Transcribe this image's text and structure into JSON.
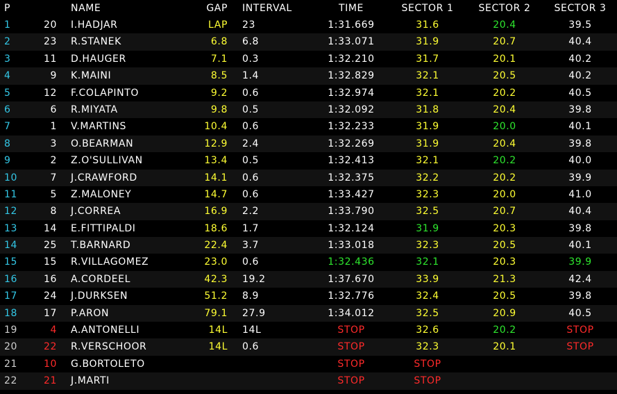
{
  "colors": {
    "white": "#ffffff",
    "yellow": "#ffff33",
    "green": "#2ee62e",
    "cyan": "#33c7e6",
    "red": "#ff2a2a",
    "background": "#000000",
    "row_alt": "#121212"
  },
  "headers": {
    "pos": "P",
    "name": "NAME",
    "gap": "GAP",
    "interval": "INTERVAL",
    "time": "TIME",
    "s1": "SECTOR 1",
    "s2": "SECTOR 2",
    "s3": "SECTOR 3"
  },
  "rows": [
    {
      "pos": "1",
      "num": "20",
      "name": "I.HADJAR",
      "gap": "LAP",
      "interval": "23",
      "time": "1:31.669",
      "s1": "31.6",
      "s2": "20.4",
      "s3": "39.5",
      "c": {
        "pos": "cyan",
        "num": "white",
        "name": "white",
        "gap": "yellow",
        "interval": "white",
        "time": "white",
        "s1": "yellow",
        "s2": "green",
        "s3": "white"
      }
    },
    {
      "pos": "2",
      "num": "23",
      "name": "R.STANEK",
      "gap": "6.8",
      "interval": "6.8",
      "time": "1:33.071",
      "s1": "31.9",
      "s2": "20.7",
      "s3": "40.4",
      "c": {
        "pos": "cyan",
        "num": "white",
        "name": "white",
        "gap": "yellow",
        "interval": "white",
        "time": "white",
        "s1": "yellow",
        "s2": "yellow",
        "s3": "white"
      }
    },
    {
      "pos": "3",
      "num": "11",
      "name": "D.HAUGER",
      "gap": "7.1",
      "interval": "0.3",
      "time": "1:32.210",
      "s1": "31.7",
      "s2": "20.1",
      "s3": "40.2",
      "c": {
        "pos": "cyan",
        "num": "white",
        "name": "white",
        "gap": "yellow",
        "interval": "white",
        "time": "white",
        "s1": "yellow",
        "s2": "yellow",
        "s3": "white"
      }
    },
    {
      "pos": "4",
      "num": "9",
      "name": "K.MAINI",
      "gap": "8.5",
      "interval": "1.4",
      "time": "1:32.829",
      "s1": "32.1",
      "s2": "20.5",
      "s3": "40.2",
      "c": {
        "pos": "cyan",
        "num": "white",
        "name": "white",
        "gap": "yellow",
        "interval": "white",
        "time": "white",
        "s1": "yellow",
        "s2": "yellow",
        "s3": "white"
      }
    },
    {
      "pos": "5",
      "num": "12",
      "name": "F.COLAPINTO",
      "gap": "9.2",
      "interval": "0.6",
      "time": "1:32.974",
      "s1": "32.1",
      "s2": "20.2",
      "s3": "40.5",
      "c": {
        "pos": "cyan",
        "num": "white",
        "name": "white",
        "gap": "yellow",
        "interval": "white",
        "time": "white",
        "s1": "yellow",
        "s2": "yellow",
        "s3": "white"
      }
    },
    {
      "pos": "6",
      "num": "6",
      "name": "R.MIYATA",
      "gap": "9.8",
      "interval": "0.5",
      "time": "1:32.092",
      "s1": "31.8",
      "s2": "20.4",
      "s3": "39.8",
      "c": {
        "pos": "cyan",
        "num": "white",
        "name": "white",
        "gap": "yellow",
        "interval": "white",
        "time": "white",
        "s1": "yellow",
        "s2": "yellow",
        "s3": "white"
      }
    },
    {
      "pos": "7",
      "num": "1",
      "name": "V.MARTINS",
      "gap": "10.4",
      "interval": "0.6",
      "time": "1:32.233",
      "s1": "31.9",
      "s2": "20.0",
      "s3": "40.1",
      "c": {
        "pos": "cyan",
        "num": "white",
        "name": "white",
        "gap": "yellow",
        "interval": "white",
        "time": "white",
        "s1": "yellow",
        "s2": "green",
        "s3": "white"
      }
    },
    {
      "pos": "8",
      "num": "3",
      "name": "O.BEARMAN",
      "gap": "12.9",
      "interval": "2.4",
      "time": "1:32.269",
      "s1": "31.9",
      "s2": "20.4",
      "s3": "39.8",
      "c": {
        "pos": "cyan",
        "num": "white",
        "name": "white",
        "gap": "yellow",
        "interval": "white",
        "time": "white",
        "s1": "yellow",
        "s2": "yellow",
        "s3": "white"
      }
    },
    {
      "pos": "9",
      "num": "2",
      "name": "Z.O'SULLIVAN",
      "gap": "13.4",
      "interval": "0.5",
      "time": "1:32.413",
      "s1": "32.1",
      "s2": "20.2",
      "s3": "40.0",
      "c": {
        "pos": "cyan",
        "num": "white",
        "name": "white",
        "gap": "yellow",
        "interval": "white",
        "time": "white",
        "s1": "yellow",
        "s2": "green",
        "s3": "white"
      }
    },
    {
      "pos": "10",
      "num": "7",
      "name": "J.CRAWFORD",
      "gap": "14.1",
      "interval": "0.6",
      "time": "1:32.375",
      "s1": "32.2",
      "s2": "20.2",
      "s3": "39.9",
      "c": {
        "pos": "cyan",
        "num": "white",
        "name": "white",
        "gap": "yellow",
        "interval": "white",
        "time": "white",
        "s1": "yellow",
        "s2": "yellow",
        "s3": "white"
      }
    },
    {
      "pos": "11",
      "num": "5",
      "name": "Z.MALONEY",
      "gap": "14.7",
      "interval": "0.6",
      "time": "1:33.427",
      "s1": "32.3",
      "s2": "20.0",
      "s3": "41.0",
      "c": {
        "pos": "cyan",
        "num": "white",
        "name": "white",
        "gap": "yellow",
        "interval": "white",
        "time": "white",
        "s1": "yellow",
        "s2": "yellow",
        "s3": "white"
      }
    },
    {
      "pos": "12",
      "num": "8",
      "name": "J.CORREA",
      "gap": "16.9",
      "interval": "2.2",
      "time": "1:33.790",
      "s1": "32.5",
      "s2": "20.7",
      "s3": "40.4",
      "c": {
        "pos": "cyan",
        "num": "white",
        "name": "white",
        "gap": "yellow",
        "interval": "white",
        "time": "white",
        "s1": "yellow",
        "s2": "yellow",
        "s3": "white"
      }
    },
    {
      "pos": "13",
      "num": "14",
      "name": "E.FITTIPALDI",
      "gap": "18.6",
      "interval": "1.7",
      "time": "1:32.124",
      "s1": "31.9",
      "s2": "20.3",
      "s3": "39.8",
      "c": {
        "pos": "cyan",
        "num": "white",
        "name": "white",
        "gap": "yellow",
        "interval": "white",
        "time": "white",
        "s1": "green",
        "s2": "yellow",
        "s3": "white"
      }
    },
    {
      "pos": "14",
      "num": "25",
      "name": "T.BARNARD",
      "gap": "22.4",
      "interval": "3.7",
      "time": "1:33.018",
      "s1": "32.3",
      "s2": "20.5",
      "s3": "40.1",
      "c": {
        "pos": "cyan",
        "num": "white",
        "name": "white",
        "gap": "yellow",
        "interval": "white",
        "time": "white",
        "s1": "yellow",
        "s2": "yellow",
        "s3": "white"
      }
    },
    {
      "pos": "15",
      "num": "15",
      "name": "R.VILLAGOMEZ",
      "gap": "23.0",
      "interval": "0.6",
      "time": "1:32.436",
      "s1": "32.1",
      "s2": "20.3",
      "s3": "39.9",
      "c": {
        "pos": "cyan",
        "num": "white",
        "name": "white",
        "gap": "yellow",
        "interval": "white",
        "time": "green",
        "s1": "green",
        "s2": "yellow",
        "s3": "green"
      }
    },
    {
      "pos": "16",
      "num": "16",
      "name": "A.CORDEEL",
      "gap": "42.3",
      "interval": "19.2",
      "time": "1:37.670",
      "s1": "33.9",
      "s2": "21.3",
      "s3": "42.4",
      "c": {
        "pos": "cyan",
        "num": "white",
        "name": "white",
        "gap": "yellow",
        "interval": "white",
        "time": "white",
        "s1": "yellow",
        "s2": "yellow",
        "s3": "white"
      }
    },
    {
      "pos": "17",
      "num": "24",
      "name": "J.DURKSEN",
      "gap": "51.2",
      "interval": "8.9",
      "time": "1:32.776",
      "s1": "32.4",
      "s2": "20.5",
      "s3": "39.8",
      "c": {
        "pos": "cyan",
        "num": "white",
        "name": "white",
        "gap": "yellow",
        "interval": "white",
        "time": "white",
        "s1": "yellow",
        "s2": "yellow",
        "s3": "white"
      }
    },
    {
      "pos": "18",
      "num": "17",
      "name": "P.ARON",
      "gap": "79.1",
      "interval": "27.9",
      "time": "1:34.012",
      "s1": "32.5",
      "s2": "20.9",
      "s3": "40.5",
      "c": {
        "pos": "cyan",
        "num": "white",
        "name": "white",
        "gap": "yellow",
        "interval": "white",
        "time": "white",
        "s1": "yellow",
        "s2": "yellow",
        "s3": "white"
      }
    },
    {
      "pos": "19",
      "num": "4",
      "name": "A.ANTONELLI",
      "gap": "14L",
      "interval": "14L",
      "time": "STOP",
      "s1": "32.6",
      "s2": "20.2",
      "s3": "STOP",
      "c": {
        "pos": "grey",
        "num": "red",
        "name": "white",
        "gap": "yellow",
        "interval": "white",
        "time": "red",
        "s1": "yellow",
        "s2": "green",
        "s3": "red"
      }
    },
    {
      "pos": "20",
      "num": "22",
      "name": "R.VERSCHOOR",
      "gap": "14L",
      "interval": "0.6",
      "time": "STOP",
      "s1": "32.3",
      "s2": "20.1",
      "s3": "STOP",
      "c": {
        "pos": "grey",
        "num": "red",
        "name": "white",
        "gap": "yellow",
        "interval": "white",
        "time": "red",
        "s1": "yellow",
        "s2": "yellow",
        "s3": "red"
      }
    },
    {
      "pos": "21",
      "num": "10",
      "name": "G.BORTOLETO",
      "gap": "",
      "interval": "",
      "time": "STOP",
      "s1": "STOP",
      "s2": "",
      "s3": "",
      "c": {
        "pos": "grey",
        "num": "red",
        "name": "white",
        "gap": "yellow",
        "interval": "white",
        "time": "red",
        "s1": "red",
        "s2": "yellow",
        "s3": "white"
      }
    },
    {
      "pos": "22",
      "num": "21",
      "name": "J.MARTI",
      "gap": "",
      "interval": "",
      "time": "STOP",
      "s1": "STOP",
      "s2": "",
      "s3": "",
      "c": {
        "pos": "grey",
        "num": "red",
        "name": "white",
        "gap": "yellow",
        "interval": "white",
        "time": "red",
        "s1": "red",
        "s2": "yellow",
        "s3": "white"
      }
    }
  ]
}
